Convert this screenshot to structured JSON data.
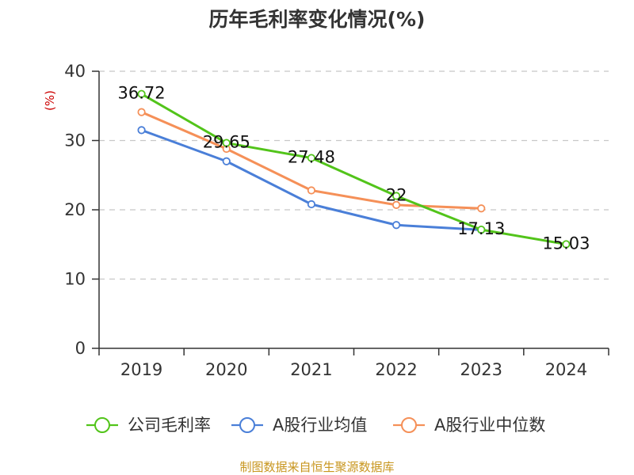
{
  "chart_data": {
    "type": "line",
    "title": "历年毛利率变化情况(%)",
    "ylabel": "(%)",
    "xlabel": "",
    "categories": [
      "2019",
      "2020",
      "2021",
      "2022",
      "2023",
      "2024"
    ],
    "ylim": [
      0,
      40
    ],
    "yticks": [
      "0",
      "10",
      "20",
      "30",
      "40"
    ],
    "grid": true,
    "legend_position": "bottom",
    "series": [
      {
        "name": "公司毛利率",
        "color": "#52c41a",
        "values": [
          36.72,
          29.65,
          27.48,
          22,
          17.13,
          15.03
        ],
        "labels": [
          "36.72",
          "29.65",
          "27.48",
          "22",
          "17.13",
          "15.03"
        ]
      },
      {
        "name": "A股行业均值",
        "color": "#4a7fd8",
        "values": [
          31.5,
          27.0,
          20.8,
          17.8,
          17.1,
          null
        ]
      },
      {
        "name": "A股行业中位数",
        "color": "#f59058",
        "values": [
          34.1,
          28.8,
          22.8,
          20.7,
          20.2,
          null
        ]
      }
    ],
    "source": "制图数据来自恒生聚源数据库"
  }
}
